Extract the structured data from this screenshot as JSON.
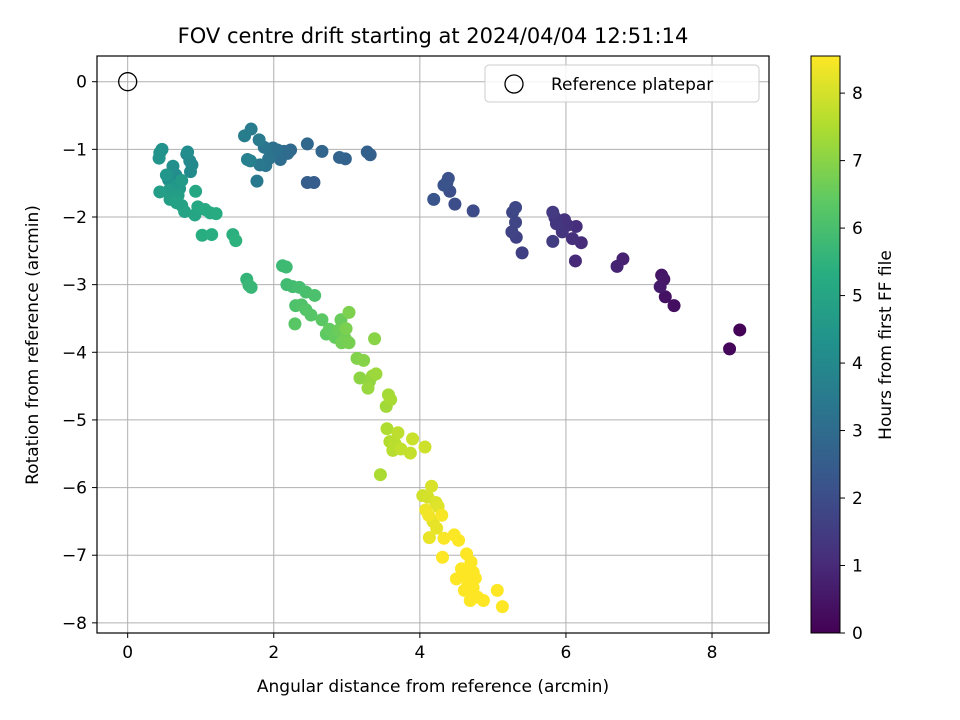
{
  "chart_data": {
    "type": "scatter",
    "title": "FOV centre drift starting at 2024/04/04 12:51:14",
    "xlabel": "Angular distance from reference (arcmin)",
    "ylabel": "Rotation from reference (arcmin)",
    "xlim": [
      -0.42,
      8.78
    ],
    "ylim": [
      -8.15,
      0.38
    ],
    "xticks": [
      0,
      2,
      4,
      6,
      8
    ],
    "yticks": [
      0,
      -1,
      -2,
      -3,
      -4,
      -5,
      -6,
      -7,
      -8
    ],
    "grid": true,
    "legend": {
      "position": "top-right",
      "entries": [
        "Reference platepar"
      ]
    },
    "reference_point": {
      "x": 0,
      "y": 0
    },
    "colorbar": {
      "label": "Hours from first FF file",
      "range": [
        0,
        8.55
      ],
      "ticks": [
        0,
        1,
        2,
        3,
        4,
        5,
        6,
        7,
        8
      ],
      "colormap": "viridis"
    },
    "points": [
      [
        8.38,
        -3.67,
        0.05
      ],
      [
        8.24,
        -3.95,
        0.15
      ],
      [
        7.48,
        -3.31,
        0.35
      ],
      [
        7.36,
        -3.18,
        0.42
      ],
      [
        7.31,
        -2.86,
        0.5
      ],
      [
        7.34,
        -2.92,
        0.55
      ],
      [
        7.29,
        -3.03,
        0.6
      ],
      [
        6.78,
        -2.62,
        0.8
      ],
      [
        6.7,
        -2.73,
        0.85
      ],
      [
        6.13,
        -2.65,
        1.0
      ],
      [
        6.21,
        -2.38,
        1.05
      ],
      [
        6.14,
        -2.14,
        1.1
      ],
      [
        6.09,
        -2.32,
        1.15
      ],
      [
        6.02,
        -2.12,
        1.2
      ],
      [
        5.98,
        -2.04,
        1.25
      ],
      [
        5.95,
        -2.22,
        1.3
      ],
      [
        5.87,
        -2.1,
        1.35
      ],
      [
        5.85,
        -2.01,
        1.4
      ],
      [
        5.82,
        -1.93,
        1.45
      ],
      [
        5.82,
        -2.36,
        1.5
      ],
      [
        5.4,
        -2.53,
        1.6
      ],
      [
        5.32,
        -2.3,
        1.65
      ],
      [
        5.26,
        -2.22,
        1.7
      ],
      [
        5.31,
        -2.08,
        1.75
      ],
      [
        5.27,
        -1.93,
        1.8
      ],
      [
        5.31,
        -1.86,
        1.85
      ],
      [
        4.73,
        -1.91,
        1.95
      ],
      [
        4.48,
        -1.81,
        2.0
      ],
      [
        4.41,
        -1.62,
        2.05
      ],
      [
        4.37,
        -1.49,
        2.1
      ],
      [
        4.39,
        -1.43,
        2.15
      ],
      [
        4.33,
        -1.53,
        2.2
      ],
      [
        4.19,
        -1.74,
        2.25
      ],
      [
        2.55,
        -1.49,
        2.5
      ],
      [
        2.46,
        -1.49,
        2.55
      ],
      [
        3.32,
        -1.08,
        2.6
      ],
      [
        3.28,
        -1.04,
        2.65
      ],
      [
        2.98,
        -1.14,
        2.7
      ],
      [
        2.9,
        -1.12,
        2.75
      ],
      [
        2.66,
        -1.03,
        2.8
      ],
      [
        2.46,
        -0.92,
        2.85
      ],
      [
        2.23,
        -1.01,
        2.9
      ],
      [
        2.19,
        -1.06,
        2.95
      ],
      [
        2.14,
        -1.03,
        3.0
      ],
      [
        2.09,
        -1.15,
        3.05
      ],
      [
        2.05,
        -1.01,
        3.1
      ],
      [
        1.99,
        -0.98,
        3.15
      ],
      [
        1.96,
        -1.07,
        3.2
      ],
      [
        1.93,
        -1.14,
        3.25
      ],
      [
        1.89,
        -1.24,
        3.3
      ],
      [
        1.87,
        -0.97,
        3.35
      ],
      [
        1.81,
        -1.23,
        3.4
      ],
      [
        1.77,
        -1.47,
        3.45
      ],
      [
        1.8,
        -0.86,
        3.5
      ],
      [
        1.69,
        -0.7,
        3.55
      ],
      [
        1.6,
        -0.8,
        3.6
      ],
      [
        1.68,
        -1.17,
        3.65
      ],
      [
        1.64,
        -1.15,
        3.7
      ],
      [
        0.81,
        -1.07,
        3.9
      ],
      [
        0.85,
        -1.17,
        3.95
      ],
      [
        0.88,
        -1.23,
        4.0
      ],
      [
        0.86,
        -1.33,
        4.05
      ],
      [
        0.82,
        -1.04,
        4.1
      ],
      [
        0.66,
        -1.38,
        4.15
      ],
      [
        0.62,
        -1.25,
        4.2
      ],
      [
        0.56,
        -1.45,
        4.25
      ],
      [
        0.47,
        -1.0,
        4.3
      ],
      [
        0.44,
        -1.05,
        4.35
      ],
      [
        0.43,
        -1.13,
        4.4
      ],
      [
        0.53,
        -1.38,
        4.45
      ],
      [
        0.66,
        -1.54,
        4.5
      ],
      [
        0.71,
        -1.58,
        4.55
      ],
      [
        0.74,
        -1.46,
        4.6
      ],
      [
        0.57,
        -1.6,
        4.65
      ],
      [
        0.69,
        -1.68,
        4.7
      ],
      [
        0.44,
        -1.63,
        4.75
      ],
      [
        0.58,
        -1.74,
        4.8
      ],
      [
        0.67,
        -1.79,
        4.85
      ],
      [
        0.74,
        -1.83,
        4.9
      ],
      [
        0.78,
        -1.92,
        4.95
      ],
      [
        0.92,
        -1.97,
        5.0
      ],
      [
        0.93,
        -1.62,
        5.05
      ],
      [
        0.96,
        -1.85,
        5.1
      ],
      [
        1.06,
        -1.89,
        5.15
      ],
      [
        1.13,
        -1.94,
        5.2
      ],
      [
        1.21,
        -1.95,
        5.25
      ],
      [
        1.02,
        -2.27,
        5.3
      ],
      [
        1.15,
        -2.26,
        5.35
      ],
      [
        1.44,
        -2.26,
        5.4
      ],
      [
        1.48,
        -2.35,
        5.45
      ],
      [
        1.63,
        -2.92,
        5.6
      ],
      [
        1.69,
        -3.04,
        5.65
      ],
      [
        1.66,
        -3.01,
        5.7
      ],
      [
        2.12,
        -2.72,
        5.75
      ],
      [
        2.17,
        -2.74,
        5.8
      ],
      [
        2.18,
        -3.0,
        5.85
      ],
      [
        2.26,
        -3.03,
        5.9
      ],
      [
        2.35,
        -3.04,
        5.95
      ],
      [
        2.44,
        -3.11,
        6.0
      ],
      [
        2.56,
        -3.16,
        6.05
      ],
      [
        2.3,
        -3.31,
        6.1
      ],
      [
        2.38,
        -3.3,
        6.15
      ],
      [
        2.44,
        -3.37,
        6.2
      ],
      [
        2.51,
        -3.45,
        6.25
      ],
      [
        2.29,
        -3.58,
        6.3
      ],
      [
        2.66,
        -3.52,
        6.35
      ],
      [
        2.72,
        -3.73,
        6.4
      ],
      [
        2.76,
        -3.66,
        6.45
      ],
      [
        2.84,
        -3.78,
        6.5
      ],
      [
        2.92,
        -3.52,
        6.55
      ],
      [
        2.89,
        -3.67,
        6.6
      ],
      [
        2.98,
        -3.8,
        6.65
      ],
      [
        2.93,
        -3.86,
        6.7
      ],
      [
        3.03,
        -3.86,
        6.75
      ],
      [
        2.99,
        -3.65,
        6.8
      ],
      [
        3.03,
        -3.41,
        6.85
      ],
      [
        3.14,
        -4.09,
        6.9
      ],
      [
        3.23,
        -4.12,
        6.95
      ],
      [
        3.38,
        -3.8,
        7.0
      ],
      [
        3.18,
        -4.38,
        7.05
      ],
      [
        3.31,
        -4.43,
        7.1
      ],
      [
        3.35,
        -4.35,
        7.15
      ],
      [
        3.29,
        -4.53,
        7.2
      ],
      [
        3.4,
        -4.32,
        7.25
      ],
      [
        3.54,
        -4.8,
        7.3
      ],
      [
        3.57,
        -4.63,
        7.35
      ],
      [
        3.6,
        -4.7,
        7.4
      ],
      [
        3.46,
        -5.81,
        7.45
      ],
      [
        3.55,
        -5.13,
        7.5
      ],
      [
        3.59,
        -5.32,
        7.55
      ],
      [
        3.63,
        -5.45,
        7.6
      ],
      [
        3.66,
        -5.35,
        7.65
      ],
      [
        3.7,
        -5.19,
        7.7
      ],
      [
        3.74,
        -5.43,
        7.75
      ],
      [
        3.87,
        -5.49,
        7.8
      ],
      [
        3.9,
        -5.28,
        7.85
      ],
      [
        4.07,
        -5.4,
        7.9
      ],
      [
        4.04,
        -6.12,
        7.95
      ],
      [
        4.11,
        -6.14,
        8.0
      ],
      [
        4.16,
        -5.98,
        8.05
      ],
      [
        4.22,
        -6.22,
        8.1
      ],
      [
        4.25,
        -6.28,
        8.15
      ],
      [
        4.18,
        -6.5,
        8.2
      ],
      [
        4.23,
        -6.6,
        8.25
      ],
      [
        4.13,
        -6.74,
        8.3
      ],
      [
        4.08,
        -6.33,
        8.35
      ],
      [
        4.12,
        -6.41,
        8.4
      ],
      [
        4.3,
        -6.41,
        8.45
      ],
      [
        4.33,
        -6.75,
        8.5
      ],
      [
        4.47,
        -6.7,
        8.52
      ],
      [
        4.53,
        -6.78,
        8.54
      ],
      [
        4.31,
        -7.03,
        8.55
      ],
      [
        4.64,
        -6.98,
        8.55
      ],
      [
        4.7,
        -7.1,
        8.55
      ],
      [
        4.57,
        -7.2,
        8.55
      ],
      [
        4.73,
        -7.25,
        8.55
      ],
      [
        4.64,
        -7.3,
        8.55
      ],
      [
        4.76,
        -7.34,
        8.55
      ],
      [
        4.66,
        -7.43,
        8.55
      ],
      [
        4.73,
        -7.48,
        8.55
      ],
      [
        4.61,
        -7.52,
        8.55
      ],
      [
        4.5,
        -7.35,
        8.55
      ],
      [
        4.7,
        -7.56,
        8.55
      ],
      [
        4.79,
        -7.62,
        8.55
      ],
      [
        4.69,
        -7.67,
        8.55
      ],
      [
        4.87,
        -7.67,
        8.55
      ],
      [
        5.06,
        -7.52,
        8.55
      ],
      [
        5.13,
        -7.76,
        8.55
      ]
    ]
  }
}
